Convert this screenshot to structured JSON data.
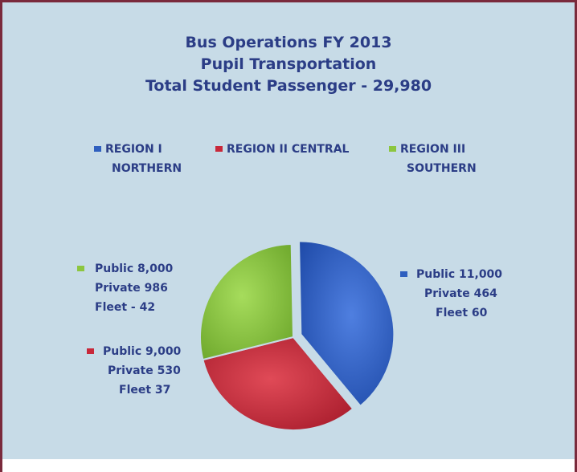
{
  "chart_data": {
    "type": "pie",
    "title": "Bus Operations FY 2013",
    "subtitle": "Pupil Transportation",
    "subtitle2": "Total  Student Passenger - 29,980",
    "legend": [
      {
        "line1": "REGION I",
        "line2": "NORTHERN",
        "color": "#2f5fbf"
      },
      {
        "line1": "REGION II CENTRAL",
        "line2": "",
        "color": "#c8283a"
      },
      {
        "line1": "REGION III",
        "line2": "SOUTHERN",
        "color": "#8cc63f"
      }
    ],
    "slices": [
      {
        "value": 11000,
        "color": "#2f5fbf",
        "lines": [
          "Public 11,000",
          "Private 464",
          "Fleet 60"
        ]
      },
      {
        "value": 9000,
        "color": "#c8283a",
        "lines": [
          "Public  9,000",
          "Private 530",
          "Fleet 37"
        ]
      },
      {
        "value": 8000,
        "color": "#8cc63f",
        "lines": [
          "Public 8,000",
          "Private  986",
          "Fleet - 42"
        ]
      }
    ],
    "legend_placement": "top"
  }
}
